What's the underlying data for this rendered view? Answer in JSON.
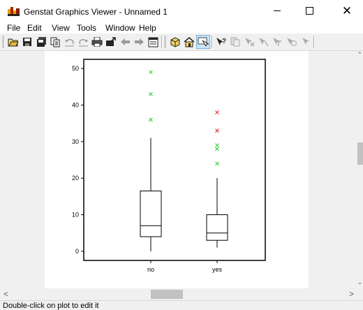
{
  "window": {
    "title": "Genstat Graphics Viewer - Unnamed 1"
  },
  "menu": {
    "items": [
      "File",
      "Edit",
      "View",
      "Tools",
      "Window",
      "Help"
    ]
  },
  "toolbar": {
    "buttons": [
      "open-icon",
      "save-icon",
      "save-all-icon",
      "copy-icon",
      "undo-icon",
      "redo-icon",
      "print-icon",
      "export-icon",
      "previous-icon",
      "next-icon",
      "properties-icon",
      "3d-icon",
      "home-icon",
      "select-icon",
      "help-icon",
      "edit-icon",
      "cross-icon",
      "arrow-icon",
      "pointer-icon",
      "pointer-help-icon",
      "pointer2-icon"
    ]
  },
  "statusbar": {
    "text": "Double-click on plot to edit it"
  },
  "chart_data": {
    "type": "box",
    "categories": [
      "no",
      "yes"
    ],
    "ylim": [
      -2.5,
      52.5
    ],
    "yticks": [
      0,
      10,
      20,
      30,
      40,
      50
    ],
    "boxes": [
      {
        "category": "no",
        "whisker_low": 0,
        "q1": 4,
        "median": 7,
        "q3": 16.5,
        "whisker_high": 31,
        "outliers": [
          {
            "value": 36,
            "kind": "mild"
          },
          {
            "value": 43,
            "kind": "mild"
          },
          {
            "value": 49,
            "kind": "mild"
          }
        ]
      },
      {
        "category": "yes",
        "whisker_low": 1,
        "q1": 3,
        "median": 5,
        "q3": 10,
        "whisker_high": 20,
        "outliers": [
          {
            "value": 24,
            "kind": "mild"
          },
          {
            "value": 28,
            "kind": "mild"
          },
          {
            "value": 29,
            "kind": "mild"
          },
          {
            "value": 33,
            "kind": "extreme"
          },
          {
            "value": 38,
            "kind": "extreme"
          }
        ]
      }
    ],
    "colors": {
      "mild": "#22cc22",
      "extreme": "#ee1111"
    }
  }
}
